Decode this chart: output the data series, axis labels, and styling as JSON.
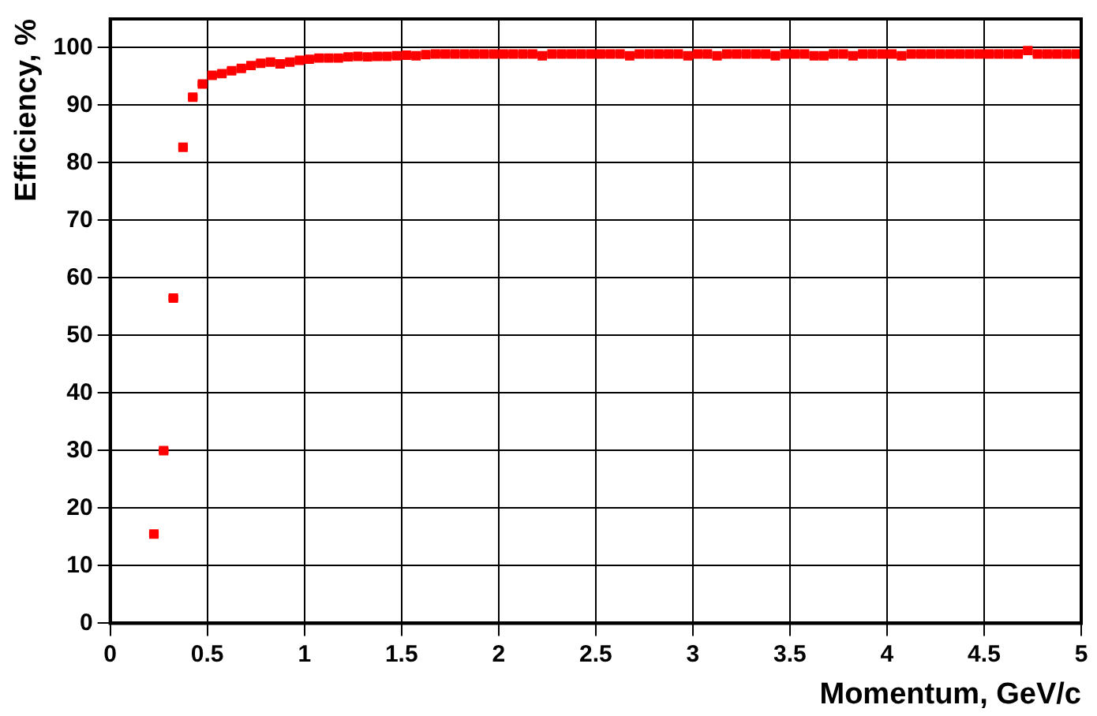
{
  "chart_data": {
    "type": "scatter",
    "xlabel": "Momentum, GeV/c",
    "ylabel": "Efficiency, %",
    "x": [
      0.225,
      0.275,
      0.325,
      0.375,
      0.425,
      0.475,
      0.525,
      0.575,
      0.625,
      0.675,
      0.725,
      0.775,
      0.825,
      0.875,
      0.925,
      0.975,
      1.025,
      1.075,
      1.125,
      1.175,
      1.225,
      1.275,
      1.325,
      1.375,
      1.425,
      1.475,
      1.525,
      1.575,
      1.625,
      1.675,
      1.725,
      1.775,
      1.825,
      1.875,
      1.925,
      1.975,
      2.025,
      2.075,
      2.125,
      2.175,
      2.225,
      2.275,
      2.325,
      2.375,
      2.425,
      2.475,
      2.525,
      2.575,
      2.625,
      2.675,
      2.725,
      2.775,
      2.825,
      2.875,
      2.925,
      2.975,
      3.025,
      3.075,
      3.125,
      3.175,
      3.225,
      3.275,
      3.325,
      3.375,
      3.425,
      3.475,
      3.525,
      3.575,
      3.625,
      3.675,
      3.725,
      3.775,
      3.825,
      3.875,
      3.925,
      3.975,
      4.025,
      4.075,
      4.125,
      4.175,
      4.225,
      4.275,
      4.325,
      4.375,
      4.425,
      4.475,
      4.525,
      4.575,
      4.625,
      4.675,
      4.725,
      4.775,
      4.825,
      4.875,
      4.925,
      4.975
    ],
    "series": [
      {
        "color": "#ff0000",
        "values": [
          15.5,
          30,
          56.5,
          82.7,
          91.4,
          93.7,
          95.2,
          95.5,
          96,
          96.4,
          96.9,
          97.3,
          97.5,
          97.2,
          97.5,
          97.8,
          98,
          98.2,
          98.2,
          98.2,
          98.4,
          98.5,
          98.4,
          98.5,
          98.5,
          98.6,
          98.7,
          98.6,
          98.8,
          98.9,
          98.9,
          98.9,
          98.9,
          98.9,
          98.9,
          98.9,
          98.9,
          98.9,
          98.9,
          98.9,
          98.6,
          98.9,
          98.9,
          98.9,
          98.9,
          98.9,
          98.9,
          98.9,
          98.9,
          98.6,
          98.9,
          98.9,
          98.9,
          98.9,
          98.9,
          98.6,
          98.9,
          98.9,
          98.6,
          98.9,
          98.9,
          98.9,
          98.9,
          98.9,
          98.6,
          98.9,
          98.9,
          98.9,
          98.6,
          98.6,
          98.9,
          98.9,
          98.6,
          98.9,
          98.9,
          98.9,
          98.9,
          98.6,
          98.9,
          98.9,
          98.9,
          98.9,
          98.9,
          98.9,
          98.9,
          98.9,
          98.9,
          98.9,
          98.9,
          98.9,
          99.5,
          98.9,
          98.9,
          98.9,
          98.9,
          98.9
        ],
        "xerrors": [
          0.025,
          0.025,
          0.025,
          0.025,
          0.025,
          0.025,
          0.025,
          0.025,
          0.025,
          0.025,
          0.025,
          0.025,
          0.025,
          0.025,
          0.025,
          0.025,
          0.025,
          0.025,
          0.025,
          0.025,
          0.025,
          0.025,
          0.025,
          0.025,
          0.025,
          0.025,
          0.025,
          0.025,
          0.025,
          0.025,
          0.025,
          0.025,
          0.025,
          0.025,
          0.025,
          0.025,
          0.025,
          0.025,
          0.025,
          0.025,
          0.025,
          0.025,
          0.025,
          0.025,
          0.025,
          0.025,
          0.025,
          0.025,
          0.025,
          0.025,
          0.025,
          0.025,
          0.025,
          0.025,
          0.025,
          0.025,
          0.025,
          0.025,
          0.025,
          0.025,
          0.025,
          0.025,
          0.025,
          0.025,
          0.025,
          0.025,
          0.025,
          0.025,
          0.025,
          0.025,
          0.025,
          0.025,
          0.025,
          0.025,
          0.025,
          0.025,
          0.025,
          0.025,
          0.025,
          0.025,
          0.025,
          0.025,
          0.025,
          0.025,
          0.025,
          0.025,
          0.025,
          0.025,
          0.025,
          0.025,
          0.025,
          0.025,
          0.025,
          0.025,
          0.025,
          0.025
        ]
      }
    ],
    "xlim": [
      0,
      5
    ],
    "xticks": [
      0,
      0.5,
      1,
      1.5,
      2,
      2.5,
      3,
      3.5,
      4,
      4.5,
      5
    ],
    "ylim": [
      0,
      105
    ],
    "yticks": [
      0,
      10,
      20,
      30,
      40,
      50,
      60,
      70,
      80,
      90,
      100
    ],
    "grid": true,
    "legend": false,
    "marker": "square"
  }
}
